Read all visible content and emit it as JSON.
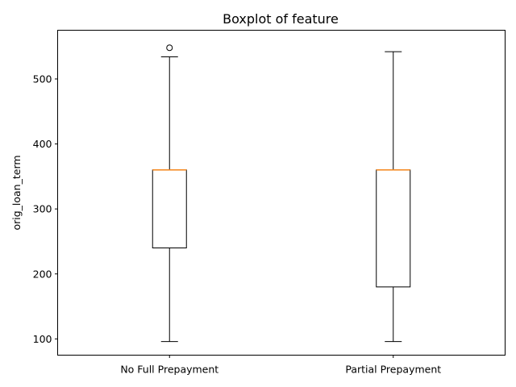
{
  "chart_data": {
    "type": "boxplot",
    "title": "Boxplot of feature",
    "xlabel": "",
    "ylabel": "orig_loan_term",
    "ylim": [
      75,
      575
    ],
    "yticks": [
      100,
      200,
      300,
      400,
      500
    ],
    "grid": false,
    "legend": null,
    "colors": {
      "box": "#000000",
      "median": "#f58518",
      "background": "#ffffff"
    },
    "categories": [
      "No Full Prepayment",
      "Partial Prepayment"
    ],
    "boxes": [
      {
        "category": "No Full Prepayment",
        "whisker_low": 96,
        "q1": 240,
        "median": 360,
        "q3": 360,
        "whisker_high": 534,
        "outliers": [
          548
        ]
      },
      {
        "category": "Partial Prepayment",
        "whisker_low": 96,
        "q1": 180,
        "median": 360,
        "q3": 360,
        "whisker_high": 542,
        "outliers": []
      }
    ]
  }
}
